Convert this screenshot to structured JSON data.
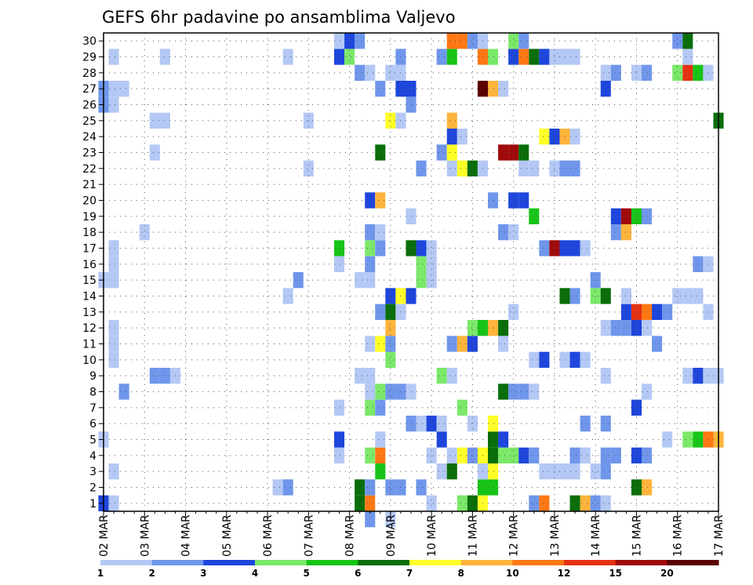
{
  "chart_data": {
    "type": "heatmap",
    "title": "GEFS 6hr padavine po ansamblima Valjevo",
    "xlabel": "",
    "ylabel": "",
    "x_tick_labels": [
      "02 MAR",
      "03 MAR",
      "04 MAR",
      "05 MAR",
      "06 MAR",
      "07 MAR",
      "08 MAR",
      "09 MAR",
      "10 MAR",
      "11 MAR",
      "12 MAR",
      "13 MAR",
      "14 MAR",
      "15 MAR",
      "16 MAR",
      "17 MAR"
    ],
    "y_tick_labels": [
      "1",
      "2",
      "3",
      "4",
      "5",
      "6",
      "7",
      "8",
      "9",
      "10",
      "11",
      "12",
      "13",
      "14",
      "15",
      "16",
      "17",
      "18",
      "19",
      "20",
      "21",
      "22",
      "23",
      "24",
      "25",
      "26",
      "27",
      "28",
      "29",
      "30"
    ],
    "x_unit": "6h steps from 02 MAR 00Z",
    "x_range": [
      0,
      60
    ],
    "y_range": [
      0.5,
      30.5
    ],
    "grid": true,
    "colorbar": {
      "breaks": [
        "1",
        "2",
        "3",
        "4",
        "5",
        "6",
        "7",
        "8",
        "10",
        "12",
        "15",
        "20"
      ],
      "colors": [
        "#b4c8f5",
        "#6f96eb",
        "#1e46dc",
        "#7be86a",
        "#18c418",
        "#0a6e0a",
        "#ffff28",
        "#ffb43c",
        "#ff7814",
        "#e63214",
        "#a00a0a",
        "#5a0000"
      ]
    },
    "cells": [
      [
        0,
        1,
        "#1e46dc"
      ],
      [
        1,
        1,
        "#b4c8f5"
      ],
      [
        25,
        1,
        "#0a6e0a"
      ],
      [
        26,
        1,
        "#ff7814"
      ],
      [
        32,
        1,
        "#b4c8f5"
      ],
      [
        35,
        1,
        "#7be86a"
      ],
      [
        36,
        1,
        "#0a6e0a"
      ],
      [
        37,
        1,
        "#ffff28"
      ],
      [
        42,
        1,
        "#6f96eb"
      ],
      [
        43,
        1,
        "#ff7814"
      ],
      [
        46,
        1,
        "#0a6e0a"
      ],
      [
        47,
        1,
        "#ffb43c"
      ],
      [
        48,
        1,
        "#6f96eb"
      ],
      [
        49,
        1,
        "#b4c8f5"
      ],
      [
        17,
        2,
        "#b4c8f5"
      ],
      [
        18,
        2,
        "#6f96eb"
      ],
      [
        25,
        2,
        "#0a6e0a"
      ],
      [
        26,
        2,
        "#6f96eb"
      ],
      [
        28,
        2,
        "#6f96eb"
      ],
      [
        29,
        2,
        "#6f96eb"
      ],
      [
        31,
        2,
        "#6f96eb"
      ],
      [
        37,
        2,
        "#18c418"
      ],
      [
        38,
        2,
        "#18c418"
      ],
      [
        52,
        2,
        "#0a6e0a"
      ],
      [
        53,
        2,
        "#ffb43c"
      ],
      [
        1,
        3,
        "#b4c8f5"
      ],
      [
        27,
        3,
        "#18c418"
      ],
      [
        33,
        3,
        "#b4c8f5"
      ],
      [
        34,
        3,
        "#0a6e0a"
      ],
      [
        37,
        3,
        "#b4c8f5"
      ],
      [
        38,
        3,
        "#ffff28"
      ],
      [
        43,
        3,
        "#b4c8f5"
      ],
      [
        44,
        3,
        "#b4c8f5"
      ],
      [
        45,
        3,
        "#b4c8f5"
      ],
      [
        46,
        3,
        "#b4c8f5"
      ],
      [
        48,
        3,
        "#b4c8f5"
      ],
      [
        49,
        3,
        "#6f96eb"
      ],
      [
        23,
        4,
        "#b4c8f5"
      ],
      [
        26,
        4,
        "#7be86a"
      ],
      [
        27,
        4,
        "#ff7814"
      ],
      [
        32,
        4,
        "#b4c8f5"
      ],
      [
        34,
        4,
        "#b4c8f5"
      ],
      [
        35,
        4,
        "#ffff28"
      ],
      [
        36,
        4,
        "#6f96eb"
      ],
      [
        37,
        4,
        "#ffff28"
      ],
      [
        38,
        4,
        "#0a6e0a"
      ],
      [
        39,
        4,
        "#7be86a"
      ],
      [
        40,
        4,
        "#7be86a"
      ],
      [
        41,
        4,
        "#1e46dc"
      ],
      [
        42,
        4,
        "#6f96eb"
      ],
      [
        46,
        4,
        "#6f96eb"
      ],
      [
        47,
        4,
        "#b4c8f5"
      ],
      [
        49,
        4,
        "#6f96eb"
      ],
      [
        50,
        4,
        "#6f96eb"
      ],
      [
        52,
        4,
        "#1e46dc"
      ],
      [
        53,
        4,
        "#6f96eb"
      ],
      [
        0,
        5,
        "#b4c8f5"
      ],
      [
        23,
        5,
        "#1e46dc"
      ],
      [
        27,
        5,
        "#b4c8f5"
      ],
      [
        33,
        5,
        "#1e46dc"
      ],
      [
        38,
        5,
        "#0a6e0a"
      ],
      [
        39,
        5,
        "#1e46dc"
      ],
      [
        55,
        5,
        "#b4c8f5"
      ],
      [
        57,
        5,
        "#7be86a"
      ],
      [
        58,
        5,
        "#18c418"
      ],
      [
        59,
        5,
        "#ff7814"
      ],
      [
        60,
        5,
        "#ffb43c"
      ],
      [
        30,
        6,
        "#6f96eb"
      ],
      [
        31,
        6,
        "#b4c8f5"
      ],
      [
        32,
        6,
        "#1e46dc"
      ],
      [
        33,
        6,
        "#b4c8f5"
      ],
      [
        36,
        6,
        "#b4c8f5"
      ],
      [
        38,
        6,
        "#ffff28"
      ],
      [
        47,
        6,
        "#6f96eb"
      ],
      [
        49,
        6,
        "#6f96eb"
      ],
      [
        23,
        7,
        "#b4c8f5"
      ],
      [
        26,
        7,
        "#7be86a"
      ],
      [
        27,
        7,
        "#6f96eb"
      ],
      [
        35,
        7,
        "#7be86a"
      ],
      [
        52,
        7,
        "#1e46dc"
      ],
      [
        2,
        8,
        "#6f96eb"
      ],
      [
        26,
        8,
        "#b4c8f5"
      ],
      [
        27,
        8,
        "#7be86a"
      ],
      [
        28,
        8,
        "#6f96eb"
      ],
      [
        29,
        8,
        "#6f96eb"
      ],
      [
        30,
        8,
        "#b4c8f5"
      ],
      [
        39,
        8,
        "#0a6e0a"
      ],
      [
        40,
        8,
        "#6f96eb"
      ],
      [
        41,
        8,
        "#6f96eb"
      ],
      [
        42,
        8,
        "#b4c8f5"
      ],
      [
        53,
        8,
        "#b4c8f5"
      ],
      [
        5,
        9,
        "#6f96eb"
      ],
      [
        6,
        9,
        "#6f96eb"
      ],
      [
        7,
        9,
        "#b4c8f5"
      ],
      [
        25,
        9,
        "#b4c8f5"
      ],
      [
        26,
        9,
        "#b4c8f5"
      ],
      [
        33,
        9,
        "#7be86a"
      ],
      [
        34,
        9,
        "#b4c8f5"
      ],
      [
        49,
        9,
        "#b4c8f5"
      ],
      [
        57,
        9,
        "#b4c8f5"
      ],
      [
        58,
        9,
        "#1e46dc"
      ],
      [
        59,
        9,
        "#b4c8f5"
      ],
      [
        60,
        9,
        "#b4c8f5"
      ],
      [
        1,
        10,
        "#b4c8f5"
      ],
      [
        28,
        10,
        "#7be86a"
      ],
      [
        42,
        10,
        "#b4c8f5"
      ],
      [
        43,
        10,
        "#1e46dc"
      ],
      [
        45,
        10,
        "#b4c8f5"
      ],
      [
        46,
        10,
        "#1e46dc"
      ],
      [
        47,
        10,
        "#b4c8f5"
      ],
      [
        1,
        11,
        "#b4c8f5"
      ],
      [
        26,
        11,
        "#b4c8f5"
      ],
      [
        27,
        11,
        "#ffff28"
      ],
      [
        28,
        11,
        "#6f96eb"
      ],
      [
        34,
        11,
        "#6f96eb"
      ],
      [
        35,
        11,
        "#ffb43c"
      ],
      [
        36,
        11,
        "#1e46dc"
      ],
      [
        39,
        11,
        "#b4c8f5"
      ],
      [
        54,
        11,
        "#6f96eb"
      ],
      [
        1,
        12,
        "#b4c8f5"
      ],
      [
        28,
        12,
        "#ffb43c"
      ],
      [
        36,
        12,
        "#7be86a"
      ],
      [
        37,
        12,
        "#18c418"
      ],
      [
        38,
        12,
        "#ffb43c"
      ],
      [
        39,
        12,
        "#0a6e0a"
      ],
      [
        49,
        12,
        "#b4c8f5"
      ],
      [
        50,
        12,
        "#6f96eb"
      ],
      [
        51,
        12,
        "#6f96eb"
      ],
      [
        52,
        12,
        "#1e46dc"
      ],
      [
        53,
        12,
        "#b4c8f5"
      ],
      [
        27,
        13,
        "#6f96eb"
      ],
      [
        28,
        13,
        "#0a6e0a"
      ],
      [
        29,
        13,
        "#b4c8f5"
      ],
      [
        40,
        13,
        "#b4c8f5"
      ],
      [
        51,
        13,
        "#1e46dc"
      ],
      [
        52,
        13,
        "#e63214"
      ],
      [
        53,
        13,
        "#ff7814"
      ],
      [
        54,
        13,
        "#1e46dc"
      ],
      [
        55,
        13,
        "#6f96eb"
      ],
      [
        59,
        13,
        "#b4c8f5"
      ],
      [
        18,
        14,
        "#b4c8f5"
      ],
      [
        28,
        14,
        "#1e46dc"
      ],
      [
        29,
        14,
        "#ffff28"
      ],
      [
        30,
        14,
        "#1e46dc"
      ],
      [
        45,
        14,
        "#0a6e0a"
      ],
      [
        46,
        14,
        "#6f96eb"
      ],
      [
        48,
        14,
        "#7be86a"
      ],
      [
        49,
        14,
        "#0a6e0a"
      ],
      [
        51,
        14,
        "#b4c8f5"
      ],
      [
        56,
        14,
        "#b4c8f5"
      ],
      [
        57,
        14,
        "#b4c8f5"
      ],
      [
        58,
        14,
        "#b4c8f5"
      ],
      [
        0,
        15,
        "#b4c8f5"
      ],
      [
        1,
        15,
        "#b4c8f5"
      ],
      [
        19,
        15,
        "#6f96eb"
      ],
      [
        25,
        15,
        "#b4c8f5"
      ],
      [
        26,
        15,
        "#b4c8f5"
      ],
      [
        31,
        15,
        "#7be86a"
      ],
      [
        32,
        15,
        "#b4c8f5"
      ],
      [
        48,
        15,
        "#6f96eb"
      ],
      [
        1,
        16,
        "#b4c8f5"
      ],
      [
        23,
        16,
        "#b4c8f5"
      ],
      [
        26,
        16,
        "#6f96eb"
      ],
      [
        31,
        16,
        "#7be86a"
      ],
      [
        32,
        16,
        "#b4c8f5"
      ],
      [
        58,
        16,
        "#6f96eb"
      ],
      [
        59,
        16,
        "#b4c8f5"
      ],
      [
        1,
        17,
        "#b4c8f5"
      ],
      [
        23,
        17,
        "#18c418"
      ],
      [
        26,
        17,
        "#7be86a"
      ],
      [
        27,
        17,
        "#6f96eb"
      ],
      [
        30,
        17,
        "#0a6e0a"
      ],
      [
        31,
        17,
        "#1e46dc"
      ],
      [
        32,
        17,
        "#b4c8f5"
      ],
      [
        43,
        17,
        "#6f96eb"
      ],
      [
        44,
        17,
        "#a00a0a"
      ],
      [
        45,
        17,
        "#1e46dc"
      ],
      [
        46,
        17,
        "#1e46dc"
      ],
      [
        47,
        17,
        "#b4c8f5"
      ],
      [
        4,
        18,
        "#b4c8f5"
      ],
      [
        26,
        18,
        "#6f96eb"
      ],
      [
        27,
        18,
        "#b4c8f5"
      ],
      [
        39,
        18,
        "#6f96eb"
      ],
      [
        40,
        18,
        "#b4c8f5"
      ],
      [
        50,
        18,
        "#6f96eb"
      ],
      [
        51,
        18,
        "#ffb43c"
      ],
      [
        30,
        19,
        "#b4c8f5"
      ],
      [
        42,
        19,
        "#18c418"
      ],
      [
        50,
        19,
        "#1e46dc"
      ],
      [
        51,
        19,
        "#a00a0a"
      ],
      [
        52,
        19,
        "#18c418"
      ],
      [
        53,
        19,
        "#6f96eb"
      ],
      [
        26,
        20,
        "#1e46dc"
      ],
      [
        27,
        20,
        "#ffb43c"
      ],
      [
        38,
        20,
        "#6f96eb"
      ],
      [
        40,
        20,
        "#1e46dc"
      ],
      [
        41,
        20,
        "#1e46dc"
      ],
      [
        20,
        22,
        "#b4c8f5"
      ],
      [
        31,
        22,
        "#6f96eb"
      ],
      [
        34,
        22,
        "#b4c8f5"
      ],
      [
        35,
        22,
        "#ffff28"
      ],
      [
        36,
        22,
        "#0a6e0a"
      ],
      [
        37,
        22,
        "#b4c8f5"
      ],
      [
        41,
        22,
        "#b4c8f5"
      ],
      [
        42,
        22,
        "#b4c8f5"
      ],
      [
        44,
        22,
        "#b4c8f5"
      ],
      [
        45,
        22,
        "#6f96eb"
      ],
      [
        46,
        22,
        "#6f96eb"
      ],
      [
        5,
        23,
        "#b4c8f5"
      ],
      [
        27,
        23,
        "#0a6e0a"
      ],
      [
        33,
        23,
        "#6f96eb"
      ],
      [
        34,
        23,
        "#ffff28"
      ],
      [
        39,
        23,
        "#a00a0a"
      ],
      [
        40,
        23,
        "#a00a0a"
      ],
      [
        41,
        23,
        "#0a6e0a"
      ],
      [
        34,
        24,
        "#1e46dc"
      ],
      [
        35,
        24,
        "#b4c8f5"
      ],
      [
        43,
        24,
        "#ffff28"
      ],
      [
        44,
        24,
        "#1e46dc"
      ],
      [
        45,
        24,
        "#ffb43c"
      ],
      [
        46,
        24,
        "#b4c8f5"
      ],
      [
        5,
        25,
        "#b4c8f5"
      ],
      [
        6,
        25,
        "#b4c8f5"
      ],
      [
        20,
        25,
        "#b4c8f5"
      ],
      [
        28,
        25,
        "#ffff28"
      ],
      [
        29,
        25,
        "#b4c8f5"
      ],
      [
        34,
        25,
        "#ffb43c"
      ],
      [
        60,
        25,
        "#0a6e0a"
      ],
      [
        0,
        26,
        "#6f96eb"
      ],
      [
        1,
        26,
        "#b4c8f5"
      ],
      [
        30,
        26,
        "#6f96eb"
      ],
      [
        0,
        27,
        "#6f96eb"
      ],
      [
        1,
        27,
        "#b4c8f5"
      ],
      [
        2,
        27,
        "#b4c8f5"
      ],
      [
        27,
        27,
        "#6f96eb"
      ],
      [
        29,
        27,
        "#1e46dc"
      ],
      [
        30,
        27,
        "#1e46dc"
      ],
      [
        37,
        27,
        "#5a0000"
      ],
      [
        38,
        27,
        "#ffb43c"
      ],
      [
        39,
        27,
        "#b4c8f5"
      ],
      [
        49,
        27,
        "#1e46dc"
      ],
      [
        25,
        28,
        "#6f96eb"
      ],
      [
        26,
        28,
        "#b4c8f5"
      ],
      [
        28,
        28,
        "#b4c8f5"
      ],
      [
        29,
        28,
        "#b4c8f5"
      ],
      [
        49,
        28,
        "#b4c8f5"
      ],
      [
        50,
        28,
        "#6f96eb"
      ],
      [
        52,
        28,
        "#b4c8f5"
      ],
      [
        53,
        28,
        "#6f96eb"
      ],
      [
        56,
        28,
        "#7be86a"
      ],
      [
        57,
        28,
        "#e63214"
      ],
      [
        58,
        28,
        "#18c418"
      ],
      [
        59,
        28,
        "#b4c8f5"
      ],
      [
        1,
        29,
        "#b4c8f5"
      ],
      [
        6,
        29,
        "#b4c8f5"
      ],
      [
        18,
        29,
        "#b4c8f5"
      ],
      [
        23,
        29,
        "#1e46dc"
      ],
      [
        24,
        29,
        "#7be86a"
      ],
      [
        29,
        29,
        "#6f96eb"
      ],
      [
        33,
        29,
        "#6f96eb"
      ],
      [
        34,
        29,
        "#18c418"
      ],
      [
        37,
        29,
        "#ff7814"
      ],
      [
        38,
        29,
        "#7be86a"
      ],
      [
        40,
        29,
        "#1e46dc"
      ],
      [
        41,
        29,
        "#ff7814"
      ],
      [
        42,
        29,
        "#0a6e0a"
      ],
      [
        43,
        29,
        "#1e46dc"
      ],
      [
        44,
        29,
        "#b4c8f5"
      ],
      [
        45,
        29,
        "#b4c8f5"
      ],
      [
        46,
        29,
        "#b4c8f5"
      ],
      [
        57,
        29,
        "#b4c8f5"
      ],
      [
        23,
        30,
        "#b4c8f5"
      ],
      [
        24,
        30,
        "#1e46dc"
      ],
      [
        25,
        30,
        "#6f96eb"
      ],
      [
        34,
        30,
        "#ff7814"
      ],
      [
        35,
        30,
        "#ff7814"
      ],
      [
        36,
        30,
        "#6f96eb"
      ],
      [
        37,
        30,
        "#b4c8f5"
      ],
      [
        40,
        30,
        "#7be86a"
      ],
      [
        41,
        30,
        "#6f96eb"
      ],
      [
        56,
        30,
        "#6f96eb"
      ],
      [
        57,
        30,
        "#0a6e0a"
      ],
      [
        26,
        0,
        "#6f96eb"
      ],
      [
        28,
        0,
        "#b4c8f5"
      ]
    ]
  }
}
